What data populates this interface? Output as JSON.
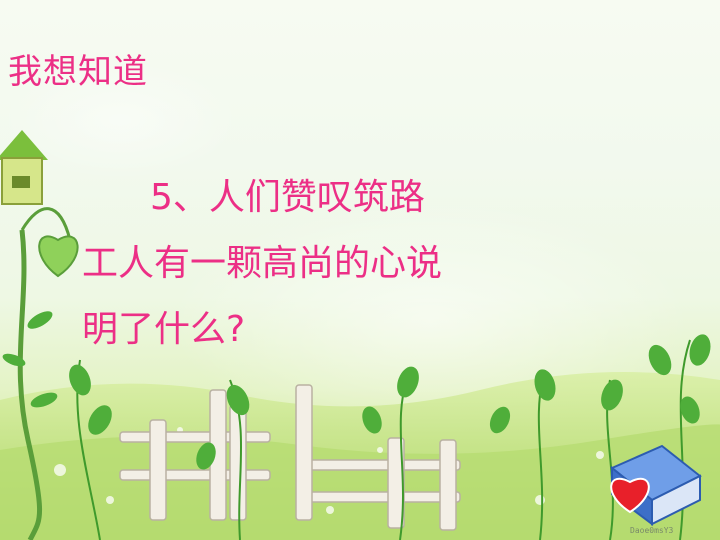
{
  "slide": {
    "heading": "我想知道",
    "question_lines": [
      "5、人们赞叹筑路",
      "工人有一颗高尚的心说",
      "明了什么?"
    ],
    "watermark": "Daoe0msY3"
  },
  "colors": {
    "text": "#ec2f86",
    "grass": "#a8d46a",
    "leaf": "#4fae3a",
    "fence": "#f3efe6",
    "heart": "#e8202a",
    "book": "#4a7fd8"
  },
  "icons": [
    "birdhouse-icon",
    "heart-leaf-icon",
    "fence-icon",
    "book-icon",
    "heart-icon"
  ]
}
